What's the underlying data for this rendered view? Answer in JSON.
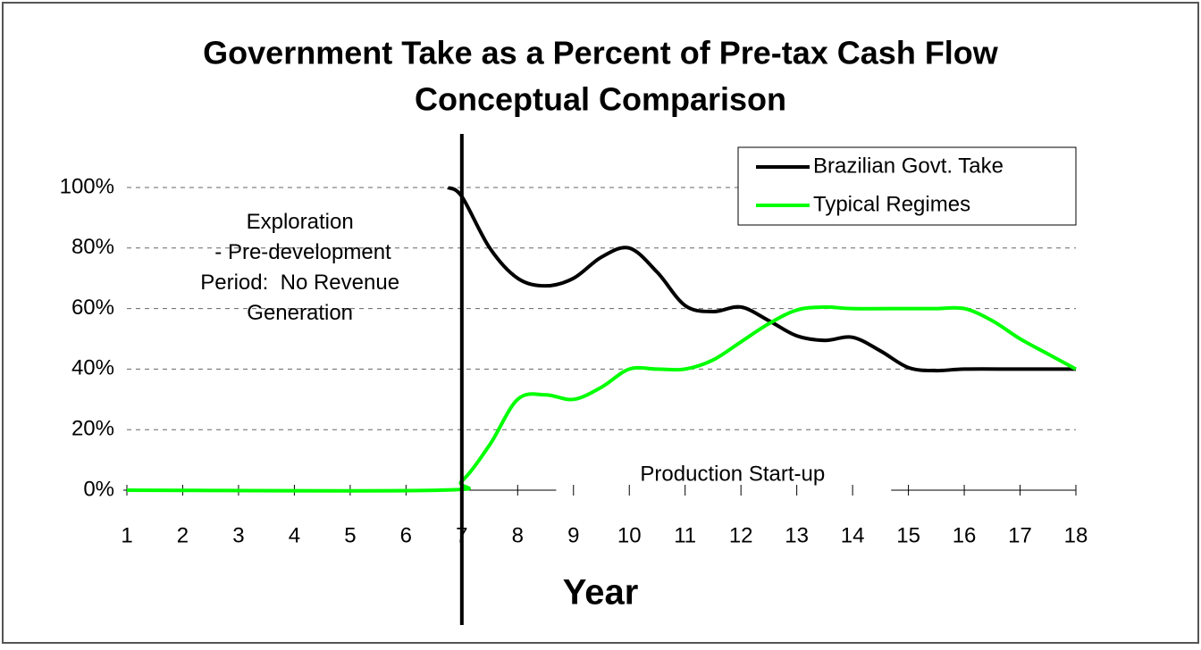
{
  "chart_data": {
    "type": "line",
    "title": [
      "Government Take as a Percent of Pre-tax Cash Flow",
      "Conceptual Comparison"
    ],
    "x_label": "Year",
    "xlim": [
      1,
      18
    ],
    "xticks": [
      1,
      2,
      3,
      4,
      5,
      6,
      7,
      8,
      9,
      10,
      11,
      12,
      13,
      14,
      15,
      16,
      17,
      18
    ],
    "ylim": [
      0,
      100
    ],
    "yticks": [
      {
        "value": 0,
        "label": "0%"
      },
      {
        "value": 20,
        "label": "20%"
      },
      {
        "value": 40,
        "label": "40%"
      },
      {
        "value": 60,
        "label": "60%"
      },
      {
        "value": 80,
        "label": "80%"
      },
      {
        "value": 100,
        "label": "100%"
      }
    ],
    "grid": true,
    "legend": "upper right",
    "vline_x": 7,
    "annotations": [
      {
        "lines": [
          "Exploration",
          " - Pre-development",
          "Period:  No Revenue",
          "Generation"
        ],
        "x": 4.1,
        "y": 80
      },
      {
        "lines": [
          "Production Start-up"
        ],
        "x": 11.85,
        "y": 5
      }
    ],
    "series": [
      {
        "name": "Brazilian Govt. Take",
        "color": "#000000",
        "x": [
          6.75,
          7,
          7.5,
          8,
          8.5,
          9,
          9.5,
          10,
          10.5,
          11,
          11.5,
          12,
          12.5,
          13,
          13.5,
          14,
          14.5,
          15,
          15.5,
          16,
          17,
          18
        ],
        "values": [
          100,
          97,
          80,
          70,
          67.5,
          70,
          77,
          80,
          72,
          61,
          59,
          60.5,
          56,
          51,
          49.5,
          50.5,
          46,
          40.5,
          39.5,
          40,
          40,
          40
        ]
      },
      {
        "name": "Typical Regimes",
        "color": "#00ff00",
        "x": [
          1,
          6.6,
          7,
          7.5,
          8,
          8.5,
          9,
          9.5,
          10,
          10.5,
          11,
          11.5,
          12,
          12.5,
          13,
          13.5,
          14,
          15,
          15.5,
          16,
          16.5,
          17,
          17.5,
          18
        ],
        "values": [
          0,
          0,
          3,
          15,
          30,
          31.5,
          30,
          34,
          40,
          40,
          40,
          43,
          49,
          55,
          59.5,
          60.5,
          60,
          60,
          60,
          60,
          56,
          50,
          45,
          40
        ]
      }
    ]
  }
}
